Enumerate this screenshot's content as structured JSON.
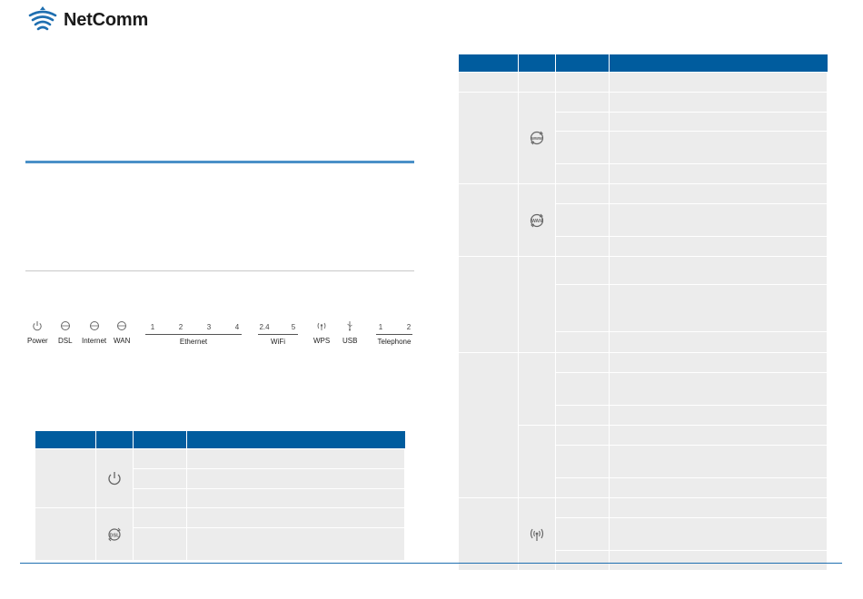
{
  "brand": {
    "name": "NetComm",
    "color": "#1f6fb0"
  },
  "led_panel": {
    "singles": [
      {
        "name": "power-led",
        "icon": "power-icon",
        "label": "Power"
      },
      {
        "name": "dsl-led",
        "icon": "dsl-icon",
        "label": "DSL"
      },
      {
        "name": "internet-led",
        "icon": "internet-icon",
        "label": "Internet"
      },
      {
        "name": "wan-led",
        "icon": "wan-icon",
        "label": "WAN"
      },
      {
        "name": "wps-led",
        "icon": "wps-icon",
        "label": "WPS"
      },
      {
        "name": "usb-led",
        "icon": "usb-icon",
        "label": "USB"
      }
    ],
    "groups": [
      {
        "name": "ethernet-group",
        "label": "Ethernet",
        "numbers": [
          "1",
          "2",
          "3",
          "4"
        ]
      },
      {
        "name": "wifi-group",
        "label": "WiFi",
        "numbers": [
          "2.4",
          "5"
        ]
      },
      {
        "name": "telephone-group",
        "label": "Telephone",
        "numbers": [
          "1",
          "2"
        ]
      }
    ]
  },
  "table_left": {
    "header_color": "#005c9e",
    "row_color": "#ececec",
    "icons": [
      "power-icon",
      "dsl-icon"
    ]
  },
  "table_right": {
    "icons": [
      "internet-icon",
      "wan-icon",
      "wps-icon"
    ]
  }
}
